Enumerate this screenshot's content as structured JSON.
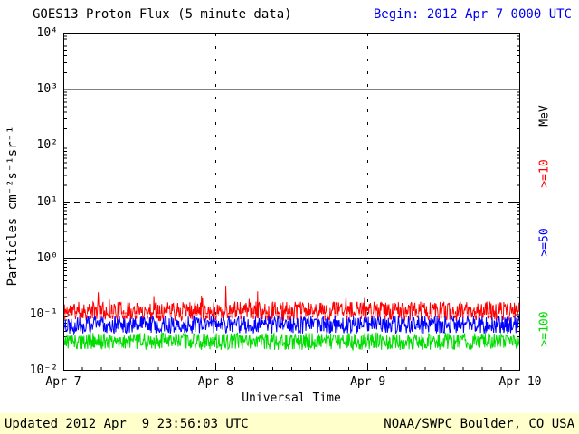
{
  "header": {
    "title": "GOES13 Proton Flux (5 minute data)",
    "begin": "Begin: 2012 Apr 7 0000 UTC"
  },
  "footer": {
    "updated": "Updated 2012 Apr  9 23:56:03 UTC",
    "source": "NOAA/SWPC Boulder, CO USA",
    "bar_color": "#ffffcc"
  },
  "chart_data": {
    "type": "line",
    "title": "GOES13 Proton Flux (5 minute data)",
    "xlabel": "Universal Time",
    "ylabel": "Particles cm⁻²s⁻¹sr⁻¹",
    "x_range_days": 3,
    "x_tick_labels": [
      "Apr 7",
      "Apr 8",
      "Apr 9",
      "Apr 10"
    ],
    "y_scale": "log10",
    "y_log_range": [
      -2,
      4
    ],
    "y_tick_labels": [
      "10⁴",
      "10³",
      "10²",
      "10¹",
      "10⁰",
      "10⁻¹",
      "10⁻²"
    ],
    "right_axis_labels": [
      "MeV",
      ">=10",
      ">=50",
      ">=100"
    ],
    "gridlines": {
      "solid_log": [
        0,
        2,
        3
      ],
      "dashed_log": [
        1
      ],
      "white_dashed_log": [
        -1
      ],
      "vertical_dotted_at_days": [
        1,
        2
      ]
    },
    "series": [
      {
        "name": ">=10 MeV",
        "color": "#ff0000",
        "baseline_log10": -0.94,
        "noise_log10": 0.17,
        "spike_prob": 0.008,
        "approx_flux_range": [
          0.07,
          0.33
        ],
        "points_per_day": 288,
        "seed": 11
      },
      {
        "name": ">=50 MeV",
        "color": "#0000ff",
        "baseline_log10": -1.18,
        "noise_log10": 0.16,
        "spike_prob": 0.003,
        "approx_flux_range": [
          0.04,
          0.11
        ],
        "points_per_day": 288,
        "seed": 22
      },
      {
        "name": ">=100 MeV",
        "color": "#00dd00",
        "baseline_log10": -1.48,
        "noise_log10": 0.15,
        "spike_prob": 0.0,
        "approx_flux_range": [
          0.02,
          0.05
        ],
        "points_per_day": 288,
        "seed": 33
      }
    ]
  }
}
